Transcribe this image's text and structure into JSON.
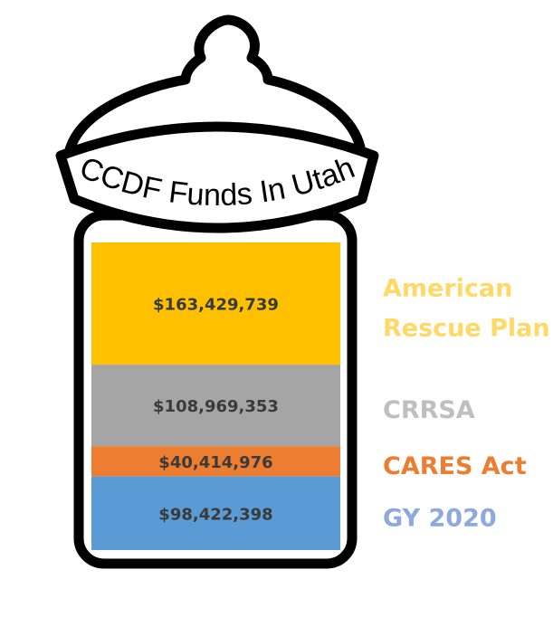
{
  "chart_data": {
    "type": "bar",
    "title": "CCDF Funds In Utah",
    "stacked": true,
    "segments": [
      {
        "name": "American Rescue Plan",
        "label_lines": [
          "American",
          "Rescue Plan"
        ],
        "value": 163429739,
        "value_label": "$163,429,739",
        "color": "#FFC000",
        "legend_color": "#FFD966"
      },
      {
        "name": "CRRSA",
        "label_lines": [
          "CRRSA"
        ],
        "value": 108969353,
        "value_label": "$108,969,353",
        "color": "#A5A5A5",
        "legend_color": "#BFBFBF"
      },
      {
        "name": "CARES Act",
        "label_lines": [
          "CARES Act"
        ],
        "value": 40414976,
        "value_label": "$40,414,976",
        "color": "#ED7D31",
        "legend_color": "#ED7D31"
      },
      {
        "name": "GY 2020",
        "label_lines": [
          "GY 2020"
        ],
        "value": 98422398,
        "value_label": "$98,422,398",
        "color": "#5B9BD5",
        "legend_color": "#8EA9DB"
      }
    ]
  }
}
